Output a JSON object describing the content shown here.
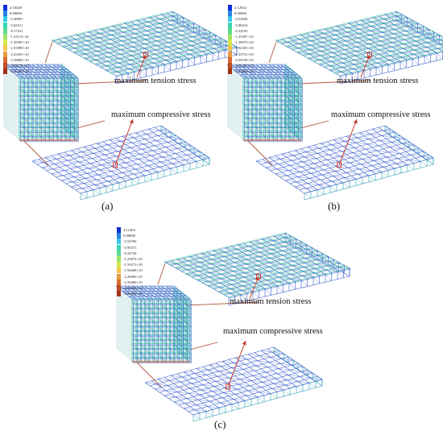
{
  "palette": [
    "#0a2fd8",
    "#2b7fe6",
    "#33c9e8",
    "#39d6b4",
    "#5edc8e",
    "#9ee46c",
    "#d6e84a",
    "#f2c64a",
    "#e89a3e",
    "#d96a2f",
    "#c04a22",
    "#a03418"
  ],
  "mesh_colors": {
    "stroke_blue": "#3a5fd0",
    "stroke_green": "#3bc79b",
    "stroke_teal": "#2e9fb5",
    "link_line": "#b0563a",
    "arrow": "#c43a2a",
    "marker": "#d23a30"
  },
  "panels": [
    {
      "label": "(a)",
      "legend": [
        "4.18449",
        "0.00000",
        "-2.48991",
        "-5.03511",
        "-9.17231",
        "-1.23115×10",
        "-1.58587×10",
        "-1.91899×10",
        "-2.25291×10",
        "-2.58683×10",
        "-2.92075×10",
        "-3.25467×10"
      ],
      "tension_label": "maximum tension stress",
      "compression_label": "maximum compressive stress"
    },
    {
      "label": "(b)",
      "legend": [
        "4.12922",
        "0.00000",
        "-2.54636",
        "-5.88414",
        "-9.22193",
        "-1.25597×10",
        "-1.58975×10",
        "-1.92353×10",
        "-2.25731×10",
        "-2.59109×10",
        "-2.92487×10",
        "-3.25865×10"
      ],
      "tension_label": "maximum tension stress",
      "compression_label": "maximum compressive stress"
    },
    {
      "label": "(c)",
      "legend": [
        "4.11204",
        "0.00000",
        "-2.54766",
        "-5.90571",
        "-9.24736",
        "-1.25872×10",
        "-1.59271×10",
        "-1.92668×10",
        "-2.26069×10",
        "-2.59466×10",
        "-2.92865×10",
        "-3.26263×10"
      ],
      "tension_label": "maximum tension stress",
      "compression_label": "maximum compressive stress"
    }
  ]
}
